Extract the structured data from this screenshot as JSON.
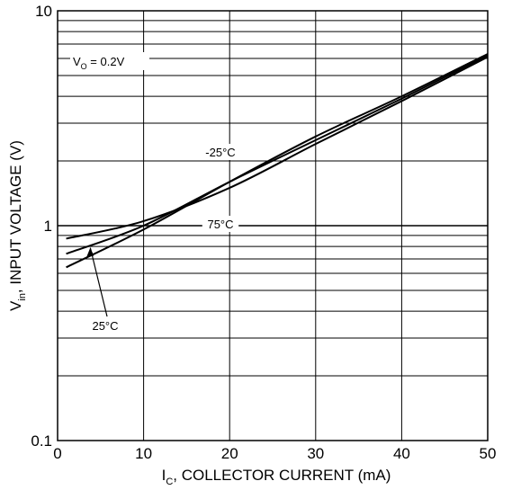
{
  "chart_data": {
    "type": "line",
    "x": [
      1,
      10,
      20,
      30,
      40,
      50
    ],
    "xlim": [
      0,
      50
    ],
    "ylim": [
      0.1,
      10
    ],
    "y_scale": "log",
    "grid": true,
    "x_ticks": [
      "0",
      "10",
      "20",
      "30",
      "40",
      "50"
    ],
    "y_ticks": [
      "0.1",
      "1",
      "10"
    ],
    "xlabel": {
      "main": "I",
      "sub": "C",
      "rest": ", COLLECTOR CURRENT (mA)"
    },
    "ylabel": {
      "main": "V",
      "sub": "in",
      "rest": ", INPUT VOLTAGE (V)"
    },
    "condition": {
      "main": "V",
      "sub": "O",
      "rest": " = 0.2V"
    },
    "series": [
      {
        "name": "-25°C",
        "values": [
          0.64,
          0.96,
          1.6,
          2.6,
          4.0,
          6.3
        ]
      },
      {
        "name": "25°C",
        "values": [
          0.74,
          1.0,
          1.6,
          2.5,
          3.9,
          6.2
        ]
      },
      {
        "name": "75°C",
        "values": [
          0.87,
          1.05,
          1.5,
          2.4,
          3.8,
          6.1
        ]
      }
    ]
  }
}
